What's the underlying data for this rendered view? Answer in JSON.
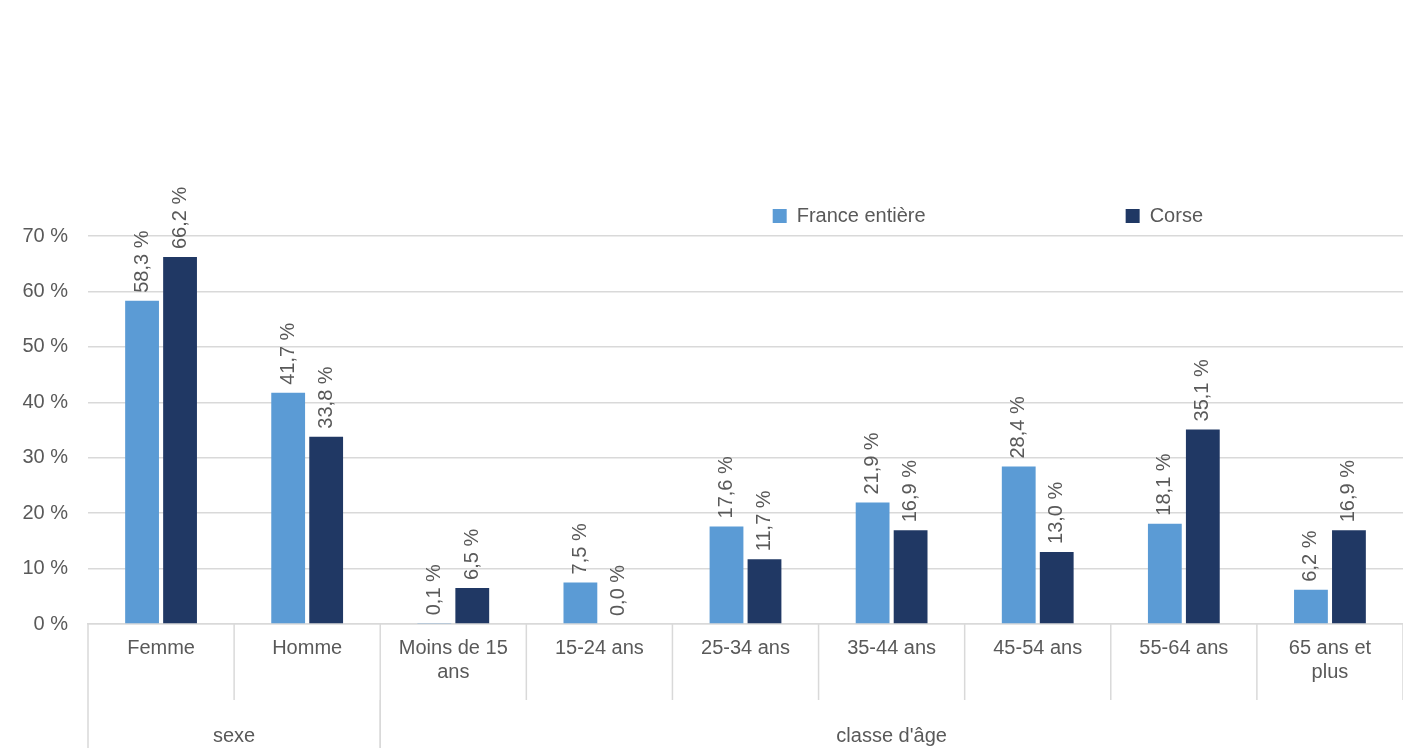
{
  "chart_data": {
    "type": "bar",
    "categories": [
      "Femme",
      "Homme",
      "Moins de 15 ans",
      "15-24 ans",
      "25-34 ans",
      "35-44 ans",
      "45-54 ans",
      "55-64 ans",
      "65 ans et plus"
    ],
    "series": [
      {
        "name": "France entière",
        "color": "#5b9bd5",
        "values": [
          58.3,
          41.7,
          0.1,
          7.5,
          17.6,
          21.9,
          28.4,
          18.1,
          6.2
        ],
        "value_labels": [
          "58,3 %",
          "41,7 %",
          "0,1 %",
          "7,5 %",
          "17,6 %",
          "21,9 %",
          "28,4 %",
          "18,1 %",
          "6,2 %"
        ]
      },
      {
        "name": "Corse",
        "color": "#203864",
        "values": [
          66.2,
          33.8,
          6.5,
          0.0,
          11.7,
          16.9,
          13.0,
          35.1,
          16.9
        ],
        "value_labels": [
          "66,2 %",
          "33,8 %",
          "6,5 %",
          "0,0 %",
          "11,7 %",
          "16,9 %",
          "13,0 %",
          "35,1 %",
          "16,9 %"
        ]
      }
    ],
    "ylim": [
      0,
      70
    ],
    "yticks": [
      {
        "value": 0,
        "label": "0 %"
      },
      {
        "value": 10,
        "label": "10 %"
      },
      {
        "value": 20,
        "label": "20 %"
      },
      {
        "value": 30,
        "label": "30 %"
      },
      {
        "value": 40,
        "label": "40 %"
      },
      {
        "value": 50,
        "label": "50 %"
      },
      {
        "value": 60,
        "label": "60 %"
      },
      {
        "value": 70,
        "label": "70 %"
      }
    ],
    "grid": "y",
    "legend": "top right",
    "annotations": [
      "sexe",
      "classe d'âge"
    ]
  }
}
